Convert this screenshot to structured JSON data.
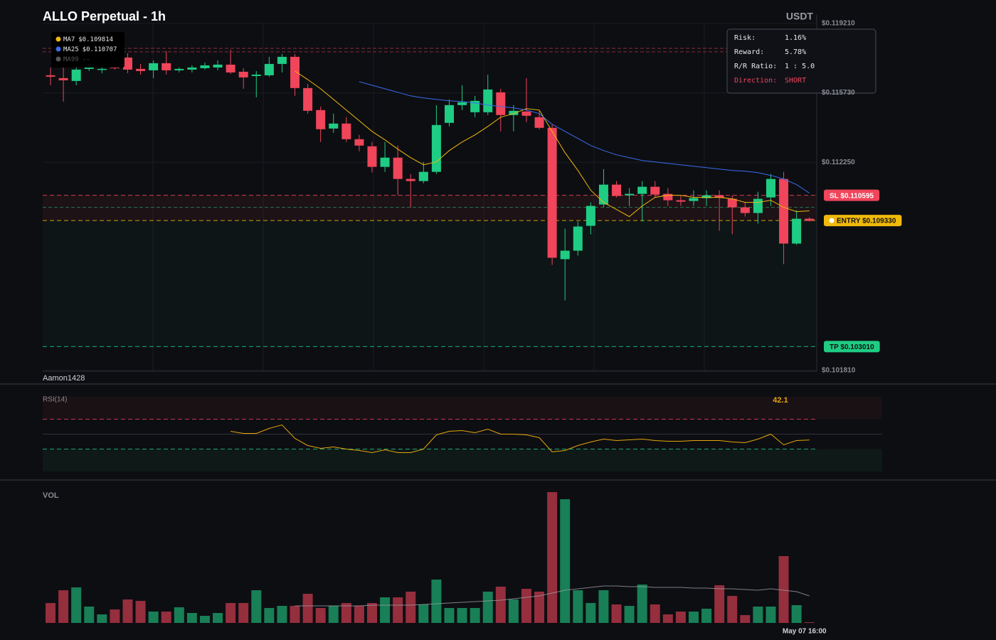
{
  "header": {
    "title": "ALLO Perpetual - 1h",
    "quote": "USDT",
    "watermark": "Aamon1428"
  },
  "info": {
    "rows": [
      {
        "label": "Risk:",
        "value": "1.16%"
      },
      {
        "label": "Reward:",
        "value": "5.78%"
      },
      {
        "label": "R/R Ratio:",
        "value": "1 : 5.0"
      },
      {
        "label": "Direction:",
        "value": "SHORT",
        "color": "#f0455a"
      }
    ]
  },
  "chart_data": [
    {
      "type": "candlestick",
      "categories": [
        null,
        null,
        null,
        null,
        null,
        null,
        null,
        null,
        null,
        null,
        null,
        null,
        null,
        null,
        null,
        null,
        null,
        null,
        null,
        null,
        null,
        null,
        null,
        null,
        null,
        null,
        null,
        null,
        null,
        null,
        null,
        null,
        null,
        null,
        null,
        null,
        null,
        null,
        null,
        null,
        null,
        null,
        null,
        null,
        null,
        null,
        null,
        null,
        null,
        null,
        null,
        null,
        null,
        null,
        null,
        null,
        null,
        null,
        null,
        "May 07 16:00"
      ],
      "open": [
        0.116611,
        0.116469,
        0.116327,
        0.116932,
        0.116896,
        0.11711,
        0.117501,
        0.116932,
        0.116861,
        0.117217,
        0.116861,
        0.116896,
        0.116967,
        0.117003,
        0.117145,
        0.116789,
        0.116576,
        0.116611,
        0.117181,
        0.117537,
        0.115971,
        0.114867,
        0.113941,
        0.114191,
        0.113407,
        0.113051,
        0.112019,
        0.112482,
        0.111414,
        0.111307,
        0.11177,
        0.114226,
        0.115116,
        0.11476,
        0.11476,
        0.115757,
        0.114618,
        0.114796,
        0.114511,
        0.113977,
        0.107391,
        0.107818,
        0.109064,
        0.110132,
        0.111129,
        0.110595,
        0.110666,
        0.111022,
        0.110666,
        0.110346,
        0.11031,
        0.110453,
        0.110595,
        0.110417,
        0.10999,
        0.109705,
        0.110488,
        0.111414,
        0.108174,
        0.10942
      ],
      "high": [
        0.117003,
        0.117003,
        0.117181,
        0.117537,
        0.117003,
        0.117359,
        0.117715,
        0.117181,
        0.117359,
        0.117822,
        0.117003,
        0.11711,
        0.117252,
        0.117359,
        0.117893,
        0.116967,
        0.116825,
        0.117537,
        0.117679,
        0.117679,
        0.116184,
        0.115045,
        0.114689,
        0.114511,
        0.113621,
        0.113265,
        0.113265,
        0.113087,
        0.111663,
        0.112268,
        0.115116,
        0.115401,
        0.116113,
        0.115579,
        0.116647,
        0.115935,
        0.115116,
        0.116469,
        0.114867,
        0.114155,
        0.108922,
        0.109278,
        0.110239,
        0.111912,
        0.111307,
        0.110951,
        0.111307,
        0.111307,
        0.110951,
        0.110595,
        0.110844,
        0.110844,
        0.110844,
        0.110595,
        0.110239,
        0.110773,
        0.111663,
        0.11177,
        0.109847,
        0.109491
      ],
      "low": [
        0.116113,
        0.115294,
        0.116113,
        0.116825,
        0.116718,
        0.116896,
        0.116718,
        0.116647,
        0.116469,
        0.116647,
        0.116754,
        0.116754,
        0.116896,
        0.116861,
        0.116683,
        0.115935,
        0.115508,
        0.11654,
        0.116754,
        0.115579,
        0.114689,
        0.113265,
        0.113728,
        0.113265,
        0.112802,
        0.111734,
        0.11177,
        0.110595,
        0.10999,
        0.1112,
        0.111663,
        0.114048,
        0.114867,
        0.114511,
        0.114618,
        0.113799,
        0.113799,
        0.114262,
        0.113906,
        0.107106,
        0.105326,
        0.107569,
        0.108637,
        0.10999,
        0.110488,
        0.110061,
        0.109278,
        0.110488,
        0.110061,
        0.110061,
        0.110061,
        0.110061,
        0.108815,
        0.108637,
        0.109527,
        0.109171,
        0.110061,
        0.107142,
        0.108103,
        0.109278
      ],
      "close": [
        0.11654,
        0.116362,
        0.116896,
        0.117003,
        0.116932,
        0.116967,
        0.116896,
        0.116825,
        0.117217,
        0.116861,
        0.116932,
        0.117003,
        0.11711,
        0.117145,
        0.116754,
        0.116505,
        0.116647,
        0.117181,
        0.117537,
        0.115971,
        0.114831,
        0.113906,
        0.114191,
        0.113407,
        0.113087,
        0.112019,
        0.112482,
        0.111414,
        0.111307,
        0.11177,
        0.114119,
        0.115116,
        0.115259,
        0.11533,
        0.115899,
        0.114618,
        0.114831,
        0.114582,
        0.113977,
        0.107462,
        0.107818,
        0.109029,
        0.110061,
        0.111129,
        0.110559,
        0.110666,
        0.111022,
        0.110631,
        0.110346,
        0.110275,
        0.110453,
        0.110595,
        0.110488,
        0.10999,
        0.109705,
        0.110417,
        0.111414,
        0.108174,
        0.10942,
        0.109313
      ],
      "up_color": "#1fcc83",
      "down_color": "#f0455a",
      "ylim": [
        0.10181,
        0.11921
      ],
      "yticks": [
        {
          "value": 0.11921,
          "label": "$0.119210"
        },
        {
          "value": 0.11573,
          "label": "$0.115730"
        },
        {
          "value": 0.11225,
          "label": "$0.112250"
        },
        {
          "value": 0.10181,
          "label": "$0.101810"
        }
      ],
      "grid": true,
      "series": [
        {
          "name": "MA7",
          "color": "#f0b90b",
          "value_label": "$0.109814",
          "values": [
            null,
            null,
            null,
            null,
            null,
            null,
            null,
            null,
            null,
            null,
            null,
            null,
            null,
            null,
            null,
            null,
            null,
            null,
            null,
            0.116825,
            0.116398,
            0.115935,
            0.115401,
            0.114867,
            0.114333,
            0.113799,
            0.113372,
            0.112909,
            0.112482,
            0.112126,
            0.112268,
            0.112838,
            0.113265,
            0.113621,
            0.114048,
            0.114511,
            0.114689,
            0.114938,
            0.114867,
            0.113799,
            0.112731,
            0.111841,
            0.110844,
            0.110239,
            0.109883,
            0.109527,
            0.110061,
            0.110488,
            0.110595,
            0.110595,
            0.110488,
            0.110488,
            0.110488,
            0.110417,
            0.110239,
            0.110239,
            0.110346,
            0.10999,
            0.109776,
            0.109814
          ]
        },
        {
          "name": "MA25",
          "color": "#3b6cf0",
          "value_label": "$0.110707",
          "values": [
            null,
            null,
            null,
            null,
            null,
            null,
            null,
            null,
            null,
            null,
            null,
            null,
            null,
            null,
            null,
            null,
            null,
            null,
            null,
            null,
            null,
            null,
            null,
            null,
            0.116291,
            0.116113,
            0.115935,
            0.115757,
            0.115579,
            0.115472,
            0.115401,
            0.11533,
            0.115294,
            0.115223,
            0.115116,
            0.115045,
            0.114974,
            0.114867,
            0.114689,
            0.114155,
            0.113799,
            0.113443,
            0.113087,
            0.112838,
            0.112624,
            0.112482,
            0.112339,
            0.112268,
            0.112197,
            0.112126,
            0.112055,
            0.111983,
            0.111912,
            0.111841,
            0.111805,
            0.111734,
            0.111592,
            0.111414,
            0.111129,
            0.110707
          ]
        },
        {
          "name": "MA99",
          "color": "#555555",
          "value_label": "--"
        }
      ],
      "levels": [
        {
          "value": 0.110595,
          "label": "SL $0.110595",
          "color": "#f0455a",
          "text_color": "#ffffff"
        },
        {
          "value": 0.10933,
          "label": "ENTRY $0.109330",
          "color": "#f0b90b",
          "text_color": "#111111"
        },
        {
          "value": 0.10301,
          "label": "TP $0.103010",
          "color": "#1fcc83",
          "text_color": "#111111"
        }
      ],
      "guide_lines": [
        {
          "value": 0.117964,
          "color": "#f0455a"
        },
        {
          "value": 0.117786,
          "color": "#f0455a"
        },
        {
          "value": 0.10999,
          "color": "#1fcc83"
        }
      ]
    },
    {
      "type": "line",
      "title": "RSI(14)",
      "color": "#e5a50a",
      "values": [
        null,
        null,
        null,
        null,
        null,
        null,
        null,
        null,
        null,
        null,
        null,
        null,
        null,
        null,
        53.8,
        51.0,
        51.0,
        57.6,
        62.4,
        44.3,
        34.8,
        31.0,
        32.9,
        30.0,
        28.1,
        25.2,
        29.0,
        25.2,
        25.2,
        30.0,
        49.0,
        53.8,
        54.8,
        51.9,
        56.7,
        50.0,
        50.0,
        49.0,
        45.2,
        26.2,
        28.1,
        34.8,
        39.5,
        43.3,
        41.4,
        42.4,
        43.3,
        41.4,
        40.5,
        40.5,
        41.4,
        41.4,
        41.4,
        39.5,
        38.6,
        43.3,
        50.0,
        35.7,
        41.4,
        42.1
      ],
      "ylim": [
        0,
        100
      ],
      "levels": [
        {
          "value": 70,
          "color": "#f0455a",
          "dashed": true
        },
        {
          "value": 50,
          "color": "#3a3d45",
          "dashed": false
        },
        {
          "value": 30,
          "color": "#1fcc83",
          "dashed": true
        }
      ]
    },
    {
      "type": "bar",
      "title": "VOL",
      "values": [
        28,
        46,
        50,
        23,
        12,
        19,
        33,
        31,
        16,
        16,
        22,
        14,
        10,
        14,
        28,
        28,
        46,
        21,
        24,
        24,
        41,
        21,
        24,
        28,
        24,
        28,
        36,
        36,
        44,
        26,
        61,
        21,
        21,
        21,
        44,
        51,
        33,
        48,
        44,
        184,
        174,
        46,
        28,
        46,
        26,
        24,
        54,
        26,
        12,
        16,
        16,
        20,
        53,
        38,
        11,
        23,
        23,
        94,
        25,
        1
      ],
      "ylim": [
        0,
        184
      ],
      "series": [
        {
          "color": "#9a9ca3",
          "values": [
            null,
            null,
            null,
            null,
            null,
            null,
            null,
            null,
            null,
            null,
            null,
            null,
            null,
            null,
            null,
            null,
            null,
            null,
            null,
            24,
            24,
            24,
            24,
            24,
            24,
            25,
            25,
            25,
            25,
            26,
            27,
            28,
            29,
            30,
            31,
            32,
            34,
            36,
            38,
            42,
            46,
            48,
            50,
            52,
            52,
            51,
            51,
            50,
            50,
            50,
            49,
            49,
            48,
            48,
            47,
            46,
            48,
            46,
            44,
            38
          ]
        }
      ]
    }
  ]
}
